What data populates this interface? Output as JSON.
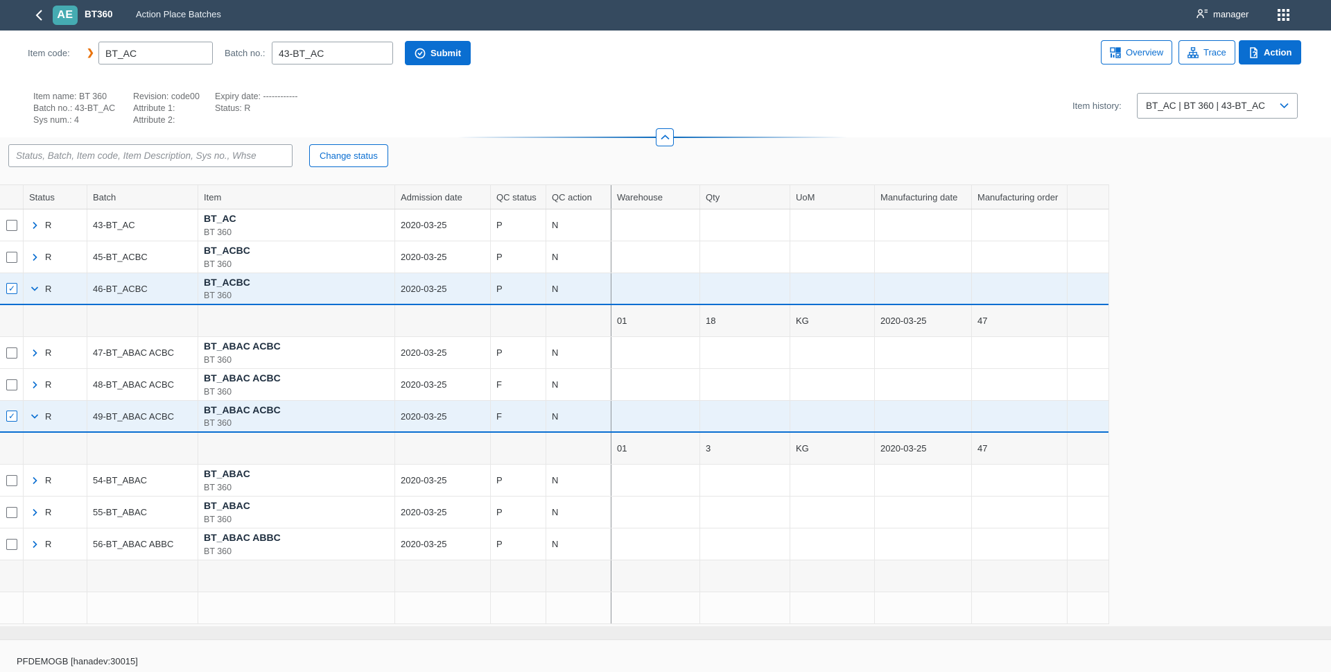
{
  "shell": {
    "logo_text": "AE",
    "app_title": "BT360",
    "page_title": "Action Place Batches",
    "user_name": "manager"
  },
  "toolbar": {
    "item_code_label": "Item code:",
    "item_code_value": "BT_AC",
    "batch_no_label": "Batch no.:",
    "batch_no_value": "43-BT_AC",
    "submit_label": "Submit",
    "overview_label": "Overview",
    "trace_label": "Trace",
    "action_label": "Action"
  },
  "info": {
    "item_name": "Item name: BT 360",
    "batch_no": "Batch no.: 43-BT_AC",
    "sys_num": "Sys num.: 4",
    "revision": "Revision: code00",
    "attribute1": "Attribute 1:",
    "attribute2": "Attribute 2:",
    "expiry_date": "Expiry date: ------------",
    "status": "Status: R",
    "item_history_label": "Item history:",
    "item_history_value": "BT_AC | BT 360 | 43-BT_AC"
  },
  "filter": {
    "search_placeholder": "Status, Batch, Item code, Item Description, Sys no., Whse",
    "change_status_label": "Change status"
  },
  "table": {
    "columns": [
      "Status",
      "Batch",
      "Item",
      "Admission date",
      "QC status",
      "QC action",
      "Warehouse",
      "Qty",
      "UoM",
      "Manufacturing date",
      "Manufacturing order"
    ],
    "rows": [
      {
        "status": "R",
        "batch": "43-BT_AC",
        "item": "BT_AC",
        "item_sub": "BT 360",
        "admission_date": "2020-03-25",
        "qc_status": "P",
        "qc_action": "N",
        "selected": false,
        "expanded": false
      },
      {
        "status": "R",
        "batch": "45-BT_ACBC",
        "item": "BT_ACBC",
        "item_sub": "BT 360",
        "admission_date": "2020-03-25",
        "qc_status": "P",
        "qc_action": "N",
        "selected": false,
        "expanded": false
      },
      {
        "status": "R",
        "batch": "46-BT_ACBC",
        "item": "BT_ACBC",
        "item_sub": "BT 360",
        "admission_date": "2020-03-25",
        "qc_status": "P",
        "qc_action": "N",
        "selected": true,
        "expanded": true,
        "detail": {
          "warehouse": "01",
          "qty": "18",
          "uom": "KG",
          "manufacturing_date": "2020-03-25",
          "manufacturing_order": "47"
        }
      },
      {
        "status": "R",
        "batch": "47-BT_ABAC ACBC",
        "item": "BT_ABAC ACBC",
        "item_sub": "BT 360",
        "admission_date": "2020-03-25",
        "qc_status": "P",
        "qc_action": "N",
        "selected": false,
        "expanded": false
      },
      {
        "status": "R",
        "batch": "48-BT_ABAC ACBC",
        "item": "BT_ABAC ACBC",
        "item_sub": "BT 360",
        "admission_date": "2020-03-25",
        "qc_status": "F",
        "qc_action": "N",
        "selected": false,
        "expanded": false
      },
      {
        "status": "R",
        "batch": "49-BT_ABAC ACBC",
        "item": "BT_ABAC ACBC",
        "item_sub": "BT 360",
        "admission_date": "2020-03-25",
        "qc_status": "F",
        "qc_action": "N",
        "selected": true,
        "expanded": true,
        "detail": {
          "warehouse": "01",
          "qty": "3",
          "uom": "KG",
          "manufacturing_date": "2020-03-25",
          "manufacturing_order": "47"
        }
      },
      {
        "status": "R",
        "batch": "54-BT_ABAC",
        "item": "BT_ABAC",
        "item_sub": "BT 360",
        "admission_date": "2020-03-25",
        "qc_status": "P",
        "qc_action": "N",
        "selected": false,
        "expanded": false
      },
      {
        "status": "R",
        "batch": "55-BT_ABAC",
        "item": "BT_ABAC",
        "item_sub": "BT 360",
        "admission_date": "2020-03-25",
        "qc_status": "P",
        "qc_action": "N",
        "selected": false,
        "expanded": false
      },
      {
        "status": "R",
        "batch": "56-BT_ABAC ABBC",
        "item": "BT_ABAC ABBC",
        "item_sub": "BT 360",
        "admission_date": "2020-03-25",
        "qc_status": "P",
        "qc_action": "N",
        "selected": false,
        "expanded": false
      }
    ],
    "empty_rows": 2
  },
  "footer": {
    "status_text": "PFDEMOGB [hanadev:30015]"
  },
  "icons": {
    "checkbox_check": "✓"
  },
  "colors": {
    "accent": "#0a6ed1",
    "shell_bg": "#354a5f",
    "logo_bg": "#45abb2",
    "selected_row_bg": "#e8f2fb",
    "required_marker": "#e9730c",
    "selected_row_border": "#0a6ed1"
  }
}
